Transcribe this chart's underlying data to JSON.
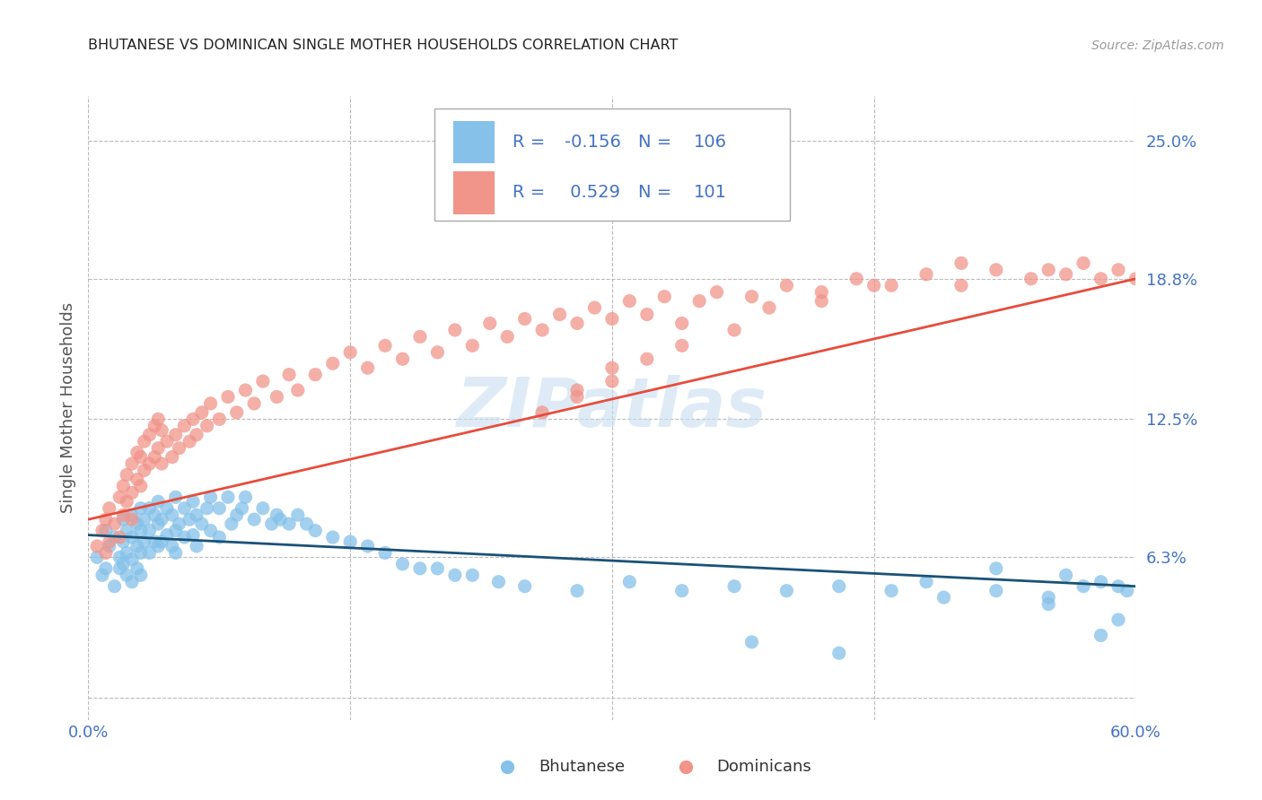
{
  "title": "BHUTANESE VS DOMINICAN SINGLE MOTHER HOUSEHOLDS CORRELATION CHART",
  "source": "Source: ZipAtlas.com",
  "ylabel": "Single Mother Households",
  "y_ticks": [
    0.0,
    0.063,
    0.125,
    0.188,
    0.25
  ],
  "y_tick_labels": [
    "",
    "6.3%",
    "12.5%",
    "18.8%",
    "25.0%"
  ],
  "x_ticks": [
    0.0,
    0.15,
    0.3,
    0.45,
    0.6
  ],
  "x_lim": [
    0.0,
    0.6
  ],
  "y_lim": [
    -0.01,
    0.27
  ],
  "legend_R_blue": "-0.156",
  "legend_N_blue": "106",
  "legend_R_pink": "0.529",
  "legend_N_pink": "101",
  "color_blue": "#85c1e9",
  "color_pink": "#f1948a",
  "line_color_blue": "#1a5276",
  "line_color_pink": "#e74c3c",
  "watermark": "ZIPatlas",
  "title_color": "#222222",
  "source_color": "#999999",
  "tick_label_color": "#4472c4",
  "grid_color": "#bbbbbb",
  "legend_text_color": "#4472c4",
  "blue_line_start_x": 0.0,
  "blue_line_start_y": 0.073,
  "blue_line_end_x": 0.6,
  "blue_line_end_y": 0.05,
  "pink_line_start_x": 0.0,
  "pink_line_start_y": 0.08,
  "pink_line_end_x": 0.6,
  "pink_line_end_y": 0.188,
  "bhutanese_x": [
    0.005,
    0.008,
    0.01,
    0.01,
    0.012,
    0.015,
    0.015,
    0.018,
    0.018,
    0.02,
    0.02,
    0.02,
    0.022,
    0.022,
    0.022,
    0.025,
    0.025,
    0.025,
    0.025,
    0.028,
    0.028,
    0.028,
    0.03,
    0.03,
    0.03,
    0.03,
    0.032,
    0.032,
    0.035,
    0.035,
    0.035,
    0.038,
    0.038,
    0.04,
    0.04,
    0.04,
    0.042,
    0.042,
    0.045,
    0.045,
    0.048,
    0.048,
    0.05,
    0.05,
    0.05,
    0.052,
    0.055,
    0.055,
    0.058,
    0.06,
    0.06,
    0.062,
    0.062,
    0.065,
    0.068,
    0.07,
    0.07,
    0.075,
    0.075,
    0.08,
    0.082,
    0.085,
    0.088,
    0.09,
    0.095,
    0.1,
    0.105,
    0.108,
    0.11,
    0.115,
    0.12,
    0.125,
    0.13,
    0.14,
    0.15,
    0.16,
    0.17,
    0.18,
    0.19,
    0.2,
    0.21,
    0.22,
    0.235,
    0.25,
    0.28,
    0.31,
    0.34,
    0.37,
    0.4,
    0.43,
    0.46,
    0.49,
    0.52,
    0.55,
    0.57,
    0.58,
    0.59,
    0.595,
    0.43,
    0.38,
    0.56,
    0.52,
    0.48,
    0.55,
    0.59,
    0.58
  ],
  "bhutanese_y": [
    0.063,
    0.055,
    0.075,
    0.058,
    0.068,
    0.05,
    0.072,
    0.063,
    0.058,
    0.08,
    0.07,
    0.06,
    0.075,
    0.065,
    0.055,
    0.082,
    0.072,
    0.062,
    0.052,
    0.078,
    0.068,
    0.058,
    0.085,
    0.075,
    0.065,
    0.055,
    0.08,
    0.07,
    0.085,
    0.075,
    0.065,
    0.082,
    0.07,
    0.088,
    0.078,
    0.068,
    0.08,
    0.07,
    0.085,
    0.073,
    0.082,
    0.068,
    0.09,
    0.075,
    0.065,
    0.078,
    0.085,
    0.072,
    0.08,
    0.088,
    0.073,
    0.082,
    0.068,
    0.078,
    0.085,
    0.09,
    0.075,
    0.085,
    0.072,
    0.09,
    0.078,
    0.082,
    0.085,
    0.09,
    0.08,
    0.085,
    0.078,
    0.082,
    0.08,
    0.078,
    0.082,
    0.078,
    0.075,
    0.072,
    0.07,
    0.068,
    0.065,
    0.06,
    0.058,
    0.058,
    0.055,
    0.055,
    0.052,
    0.05,
    0.048,
    0.052,
    0.048,
    0.05,
    0.048,
    0.05,
    0.048,
    0.045,
    0.048,
    0.045,
    0.05,
    0.052,
    0.05,
    0.048,
    0.02,
    0.025,
    0.055,
    0.058,
    0.052,
    0.042,
    0.035,
    0.028
  ],
  "dominican_x": [
    0.005,
    0.008,
    0.01,
    0.01,
    0.012,
    0.012,
    0.015,
    0.018,
    0.018,
    0.02,
    0.02,
    0.022,
    0.022,
    0.025,
    0.025,
    0.025,
    0.028,
    0.028,
    0.03,
    0.03,
    0.032,
    0.032,
    0.035,
    0.035,
    0.038,
    0.038,
    0.04,
    0.04,
    0.042,
    0.042,
    0.045,
    0.048,
    0.05,
    0.052,
    0.055,
    0.058,
    0.06,
    0.062,
    0.065,
    0.068,
    0.07,
    0.075,
    0.08,
    0.085,
    0.09,
    0.095,
    0.1,
    0.108,
    0.115,
    0.12,
    0.13,
    0.14,
    0.15,
    0.16,
    0.17,
    0.18,
    0.19,
    0.2,
    0.21,
    0.22,
    0.23,
    0.24,
    0.25,
    0.26,
    0.27,
    0.28,
    0.29,
    0.3,
    0.31,
    0.32,
    0.33,
    0.35,
    0.36,
    0.38,
    0.4,
    0.42,
    0.44,
    0.46,
    0.48,
    0.5,
    0.52,
    0.54,
    0.55,
    0.56,
    0.57,
    0.58,
    0.59,
    0.6,
    0.39,
    0.34,
    0.3,
    0.28,
    0.26,
    0.5,
    0.45,
    0.42,
    0.3,
    0.34,
    0.37,
    0.28,
    0.32
  ],
  "dominican_y": [
    0.068,
    0.075,
    0.065,
    0.08,
    0.07,
    0.085,
    0.078,
    0.072,
    0.09,
    0.082,
    0.095,
    0.088,
    0.1,
    0.092,
    0.105,
    0.08,
    0.098,
    0.11,
    0.095,
    0.108,
    0.102,
    0.115,
    0.105,
    0.118,
    0.108,
    0.122,
    0.112,
    0.125,
    0.105,
    0.12,
    0.115,
    0.108,
    0.118,
    0.112,
    0.122,
    0.115,
    0.125,
    0.118,
    0.128,
    0.122,
    0.132,
    0.125,
    0.135,
    0.128,
    0.138,
    0.132,
    0.142,
    0.135,
    0.145,
    0.138,
    0.145,
    0.15,
    0.155,
    0.148,
    0.158,
    0.152,
    0.162,
    0.155,
    0.165,
    0.158,
    0.168,
    0.162,
    0.17,
    0.165,
    0.172,
    0.168,
    0.175,
    0.17,
    0.178,
    0.172,
    0.18,
    0.178,
    0.182,
    0.18,
    0.185,
    0.182,
    0.188,
    0.185,
    0.19,
    0.185,
    0.192,
    0.188,
    0.192,
    0.19,
    0.195,
    0.188,
    0.192,
    0.188,
    0.175,
    0.168,
    0.142,
    0.135,
    0.128,
    0.195,
    0.185,
    0.178,
    0.148,
    0.158,
    0.165,
    0.138,
    0.152
  ]
}
